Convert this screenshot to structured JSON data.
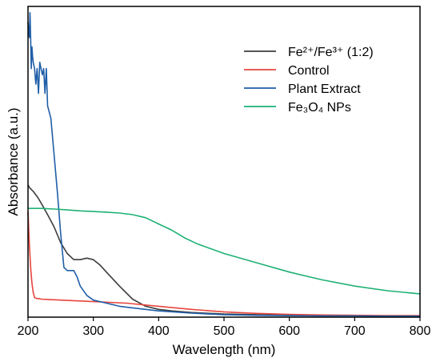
{
  "chart_data": {
    "type": "line",
    "title": "",
    "xlabel": "Wavelength (nm)",
    "ylabel": "Absorbance (a.u.)",
    "xlim": [
      200,
      800
    ],
    "ylim": [
      0,
      1
    ],
    "x_ticks": [
      200,
      300,
      400,
      500,
      600,
      700,
      800
    ],
    "x_tick_labels": [
      "200",
      "300",
      "400",
      "500",
      "600",
      "700",
      "800"
    ],
    "y_ticks_labeled": false,
    "grid": false,
    "legend_position": "top-right",
    "legend": [
      "Fe²⁺/Fe³⁺ (1:2)",
      "Control",
      "Plant Extract",
      "Fe₃O₄ NPs"
    ],
    "series": [
      {
        "name": "Fe²⁺/Fe³⁺ (1:2)",
        "color": "#3d3d3d",
        "x": [
          200,
          203,
          208,
          215,
          222,
          230,
          240,
          250,
          260,
          270,
          280,
          290,
          300,
          310,
          320,
          340,
          360,
          380,
          400,
          420,
          450,
          500,
          550,
          600,
          650,
          700,
          750,
          800
        ],
        "y": [
          0.425,
          0.415,
          0.405,
          0.385,
          0.36,
          0.33,
          0.29,
          0.24,
          0.205,
          0.185,
          0.185,
          0.19,
          0.185,
          0.168,
          0.145,
          0.1,
          0.058,
          0.035,
          0.025,
          0.02,
          0.015,
          0.01,
          0.008,
          0.006,
          0.005,
          0.005,
          0.004,
          0.004
        ]
      },
      {
        "name": "Control",
        "color": "#e8453c",
        "x": [
          200,
          202,
          204,
          206,
          208,
          210,
          213,
          216,
          220,
          230,
          250,
          300,
          350,
          400,
          450,
          500,
          550,
          600,
          650,
          700,
          750,
          800
        ],
        "y": [
          0.34,
          0.24,
          0.16,
          0.11,
          0.08,
          0.063,
          0.06,
          0.06,
          0.058,
          0.057,
          0.055,
          0.05,
          0.045,
          0.035,
          0.025,
          0.017,
          0.012,
          0.009,
          0.007,
          0.006,
          0.005,
          0.005
        ]
      },
      {
        "name": "Plant Extract",
        "color": "#1f5ea8",
        "x": [
          200,
          202,
          203,
          204,
          205,
          206,
          207,
          208,
          210,
          212,
          214,
          216,
          218,
          220,
          222,
          224,
          226,
          228,
          230,
          235,
          240,
          245,
          250,
          255,
          260,
          265,
          270,
          275,
          280,
          290,
          300,
          320,
          340,
          360,
          380,
          400,
          450,
          500,
          550,
          600,
          650,
          700,
          750,
          800
        ],
        "y": [
          0.95,
          0.9,
          0.98,
          0.9,
          0.8,
          0.87,
          0.84,
          0.82,
          0.8,
          0.75,
          0.8,
          0.72,
          0.82,
          0.8,
          0.78,
          0.8,
          0.72,
          0.8,
          0.68,
          0.64,
          0.52,
          0.4,
          0.27,
          0.16,
          0.15,
          0.15,
          0.15,
          0.13,
          0.1,
          0.07,
          0.055,
          0.045,
          0.035,
          0.03,
          0.025,
          0.02,
          0.013,
          0.008,
          0.006,
          0.005,
          0.004,
          0.004,
          0.003,
          0.003
        ]
      },
      {
        "name": "Fe₃O₄ NPs",
        "color": "#1eb174",
        "x": [
          200,
          220,
          240,
          260,
          280,
          300,
          320,
          340,
          360,
          380,
          400,
          420,
          440,
          460,
          480,
          500,
          550,
          600,
          650,
          700,
          750,
          800
        ],
        "y": [
          0.35,
          0.35,
          0.348,
          0.345,
          0.342,
          0.34,
          0.338,
          0.335,
          0.33,
          0.32,
          0.3,
          0.28,
          0.255,
          0.235,
          0.22,
          0.205,
          0.175,
          0.145,
          0.12,
          0.1,
          0.085,
          0.075
        ]
      }
    ]
  }
}
